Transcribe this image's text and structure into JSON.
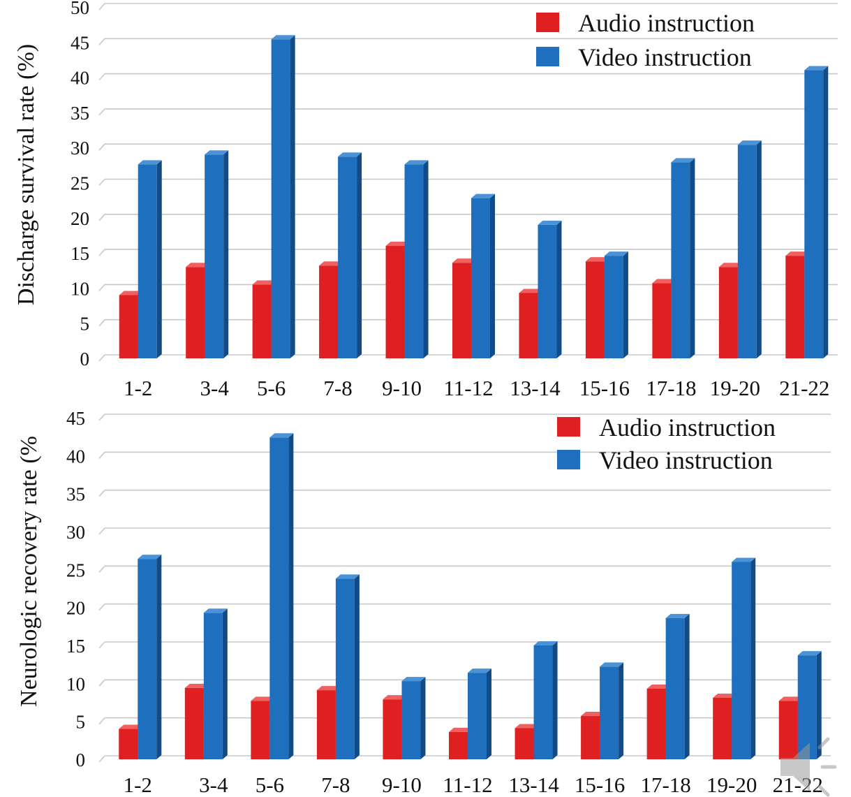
{
  "colors": {
    "audio": "#e02020",
    "audio_side": "#a81616",
    "audio_top": "#f06060",
    "video": "#1f6fbf",
    "video_side": "#124b86",
    "video_top": "#4b92d6",
    "grid": "#c8c8c8"
  },
  "icons": {
    "overlay": "speaker-icon"
  },
  "chart_data": [
    {
      "type": "bar",
      "title": "",
      "xlabel": "",
      "ylabel": "Discharge survival rate (%)",
      "ylim": [
        0,
        50
      ],
      "yticks": [
        0,
        5,
        10,
        15,
        20,
        25,
        30,
        35,
        40,
        45,
        50
      ],
      "categories": [
        "1-2",
        "3-4",
        "5-6",
        "7-8",
        "9-10",
        "11-12",
        "13-14",
        "15-16",
        "17-18",
        "19-20",
        "21-22"
      ],
      "series": [
        {
          "name": "Audio instruction",
          "values": [
            9,
            13,
            10.5,
            13.2,
            16,
            13.6,
            9.3,
            13.8,
            10.7,
            13,
            14.6
          ]
        },
        {
          "name": "Video instruction",
          "values": [
            27.6,
            29,
            45.4,
            28.7,
            27.6,
            22.8,
            19,
            14.6,
            27.9,
            30.4,
            41
          ]
        }
      ],
      "legend": "top-right",
      "grid": true
    },
    {
      "type": "bar",
      "title": "",
      "xlabel": "",
      "ylabel": "Neurologic recovery rate (%",
      "ylim": [
        0,
        45
      ],
      "yticks": [
        0,
        5,
        10,
        15,
        20,
        25,
        30,
        35,
        40,
        45
      ],
      "categories": [
        "1-2",
        "3-4",
        "5-6",
        "7-8",
        "9-10",
        "11-12",
        "13-14",
        "15-16",
        "17-18",
        "19-20",
        "21-22"
      ],
      "series": [
        {
          "name": "Audio instruction",
          "values": [
            4,
            9.4,
            7.7,
            9.1,
            7.9,
            3.6,
            4.1,
            5.7,
            9.3,
            8.1,
            7.7
          ]
        },
        {
          "name": "Video instruction",
          "values": [
            26.4,
            19.3,
            42.4,
            23.8,
            10.3,
            11.4,
            15,
            12.2,
            18.6,
            26,
            13.7
          ]
        }
      ],
      "legend": "top-right",
      "grid": true
    }
  ]
}
